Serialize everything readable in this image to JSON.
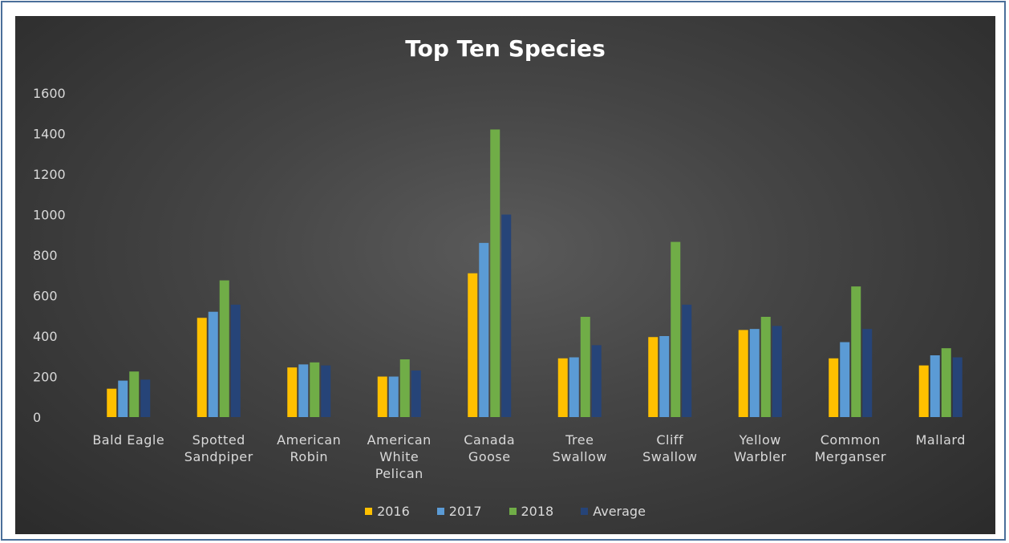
{
  "chart_data": {
    "type": "bar",
    "title": "Top Ten Species",
    "xlabel": "",
    "ylabel": "",
    "ylim": [
      0,
      1600
    ],
    "yticks": [
      0,
      200,
      400,
      600,
      800,
      1000,
      1200,
      1400,
      1600
    ],
    "grid": false,
    "legend_position": "bottom",
    "categories": [
      [
        "Bald Eagle"
      ],
      [
        "Spotted",
        "Sandpiper"
      ],
      [
        "American",
        "Robin"
      ],
      [
        "American",
        "White",
        "Pelican"
      ],
      [
        "Canada",
        "Goose"
      ],
      [
        "Tree",
        "Swallow"
      ],
      [
        "Cliff",
        "Swallow"
      ],
      [
        "Yellow",
        "Warbler"
      ],
      [
        "Common",
        "Merganser"
      ],
      [
        "Mallard"
      ]
    ],
    "series": [
      {
        "name": "2016",
        "color": "#ffc000",
        "values": [
          140,
          490,
          245,
          200,
          710,
          290,
          395,
          430,
          290,
          255
        ]
      },
      {
        "name": "2017",
        "color": "#5b9bd5",
        "values": [
          180,
          520,
          260,
          200,
          860,
          295,
          400,
          435,
          370,
          305
        ]
      },
      {
        "name": "2018",
        "color": "#70ad47",
        "values": [
          225,
          675,
          270,
          285,
          1420,
          495,
          865,
          495,
          645,
          340
        ]
      },
      {
        "name": "Average",
        "color": "#264478",
        "values": [
          185,
          555,
          255,
          230,
          1000,
          355,
          555,
          450,
          435,
          295
        ]
      }
    ]
  }
}
